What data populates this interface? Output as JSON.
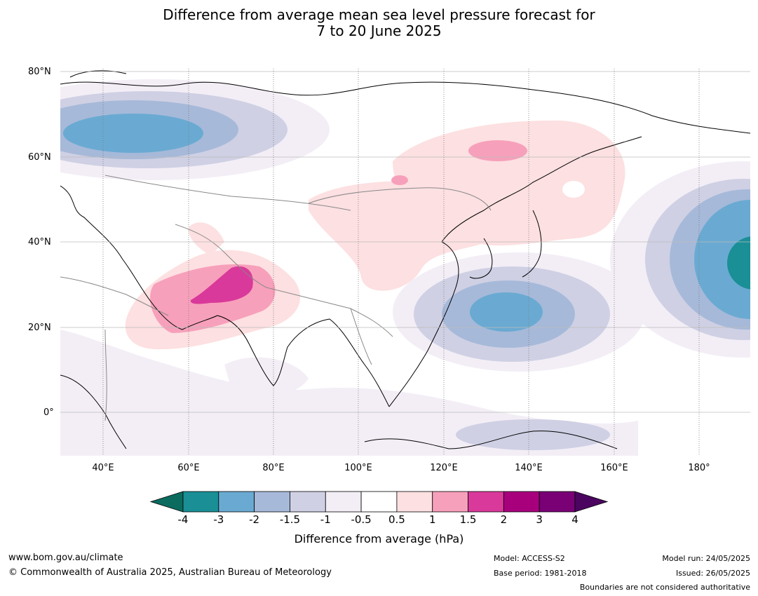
{
  "header": {
    "title_line1": "Difference from average mean sea level pressure forecast for",
    "title_line2": "7 to 20 June 2025"
  },
  "map": {
    "lat_labels": [
      "80°N",
      "60°N",
      "40°N",
      "20°N",
      "0°"
    ],
    "lon_labels": [
      "40°E",
      "60°E",
      "80°E",
      "100°E",
      "120°E",
      "140°E",
      "160°E",
      "180°"
    ],
    "extent": {
      "lon_min": 30,
      "lon_max": 192,
      "lat_min": -10,
      "lat_max": 80
    }
  },
  "colorbar": {
    "ticks": [
      "-4",
      "-3",
      "-2",
      "-1.5",
      "-1",
      "-0.5",
      "0.5",
      "1",
      "1.5",
      "2",
      "3",
      "4"
    ],
    "colors": [
      "#1a8f96",
      "#6aaad2",
      "#a6b9d9",
      "#cfd0e4",
      "#f3eef6",
      "#ffffff",
      "#fde0e1",
      "#f7a0bb",
      "#d9399a",
      "#a8007d",
      "#7a0076"
    ],
    "under_color": "#0b6b5e",
    "over_color": "#4b0460",
    "label": "Difference from average (hPa)"
  },
  "footer": {
    "url": "www.bom.gov.au/climate",
    "copyright": "© Commonwealth of Australia 2025, Australian Bureau of Meteorology",
    "model": "Model: ACCESS-S2",
    "base_period": "Base period: 1981-2018",
    "model_run": "Model run: 24/05/2025",
    "issued": "Issued: 26/05/2025",
    "disclaimer": "Boundaries are not considered authoritative"
  }
}
